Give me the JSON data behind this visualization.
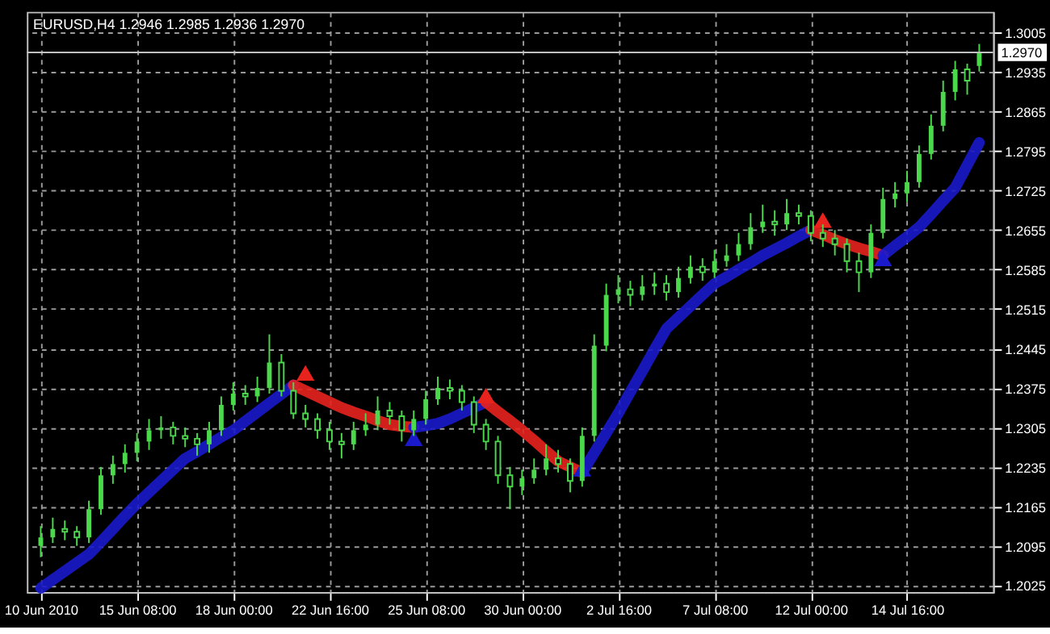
{
  "chart_data": {
    "type": "candlestick",
    "title": "EURUSD,H4  1.2946 1.2985 1.2936 1.2970",
    "color": "#4cd84c",
    "categories": [
      "10 Jun 2010",
      null,
      null,
      null,
      null,
      null,
      null,
      null,
      "15 Jun 08:00",
      null,
      null,
      null,
      null,
      null,
      null,
      null,
      "18 Jun 00:00",
      null,
      null,
      null,
      null,
      null,
      null,
      null,
      "22 Jun 16:00",
      null,
      null,
      null,
      null,
      null,
      null,
      null,
      "25 Jun 08:00",
      null,
      null,
      null,
      null,
      null,
      null,
      null,
      "30 Jun 00:00",
      null,
      null,
      null,
      null,
      null,
      null,
      null,
      "2 Jul 16:00",
      null,
      null,
      null,
      null,
      null,
      null,
      null,
      "7 Jul 08:00",
      null,
      null,
      null,
      null,
      null,
      null,
      null,
      "12 Jul 00:00",
      null,
      null,
      null,
      null,
      null,
      null,
      null,
      "14 Jul 16:00",
      null,
      null,
      null,
      null,
      null,
      null
    ],
    "ohlc": [
      [
        1.2095,
        1.213,
        1.2075,
        1.211
      ],
      [
        1.211,
        1.2145,
        1.21,
        1.2125
      ],
      [
        1.2125,
        1.214,
        1.2105,
        1.212
      ],
      [
        1.212,
        1.213,
        1.2095,
        1.211
      ],
      [
        1.211,
        1.2175,
        1.21,
        1.216
      ],
      [
        1.216,
        1.2235,
        1.215,
        1.222
      ],
      [
        1.222,
        1.2255,
        1.2205,
        1.224
      ],
      [
        1.224,
        1.2275,
        1.2225,
        1.226
      ],
      [
        1.226,
        1.2295,
        1.2245,
        1.228
      ],
      [
        1.228,
        1.232,
        1.2265,
        1.23
      ],
      [
        1.23,
        1.2325,
        1.2285,
        1.2305
      ],
      [
        1.2305,
        1.2315,
        1.2275,
        1.229
      ],
      [
        1.229,
        1.2305,
        1.227,
        1.2285
      ],
      [
        1.2285,
        1.2295,
        1.2255,
        1.2275
      ],
      [
        1.2275,
        1.2315,
        1.226,
        1.23
      ],
      [
        1.23,
        1.236,
        1.229,
        1.2345
      ],
      [
        1.2345,
        1.2385,
        1.2335,
        1.2365
      ],
      [
        1.2365,
        1.238,
        1.2345,
        1.236
      ],
      [
        1.236,
        1.2395,
        1.235,
        1.2375
      ],
      [
        1.2375,
        1.247,
        1.2365,
        1.242
      ],
      [
        1.242,
        1.2435,
        1.236,
        1.237
      ],
      [
        1.237,
        1.2385,
        1.232,
        1.233
      ],
      [
        1.233,
        1.2345,
        1.2305,
        1.232
      ],
      [
        1.232,
        1.233,
        1.2285,
        1.23
      ],
      [
        1.23,
        1.2315,
        1.2265,
        1.228
      ],
      [
        1.228,
        1.2295,
        1.225,
        1.2275
      ],
      [
        1.2275,
        1.2315,
        1.2265,
        1.23
      ],
      [
        1.23,
        1.233,
        1.229,
        1.231
      ],
      [
        1.231,
        1.236,
        1.23,
        1.2335
      ],
      [
        1.2335,
        1.235,
        1.231,
        1.2325
      ],
      [
        1.2325,
        1.2335,
        1.228,
        1.23
      ],
      [
        1.23,
        1.2335,
        1.229,
        1.232
      ],
      [
        1.232,
        1.237,
        1.231,
        1.2355
      ],
      [
        1.2355,
        1.2395,
        1.2345,
        1.2375
      ],
      [
        1.2375,
        1.239,
        1.2355,
        1.237
      ],
      [
        1.237,
        1.238,
        1.2335,
        1.235
      ],
      [
        1.235,
        1.236,
        1.2295,
        1.231
      ],
      [
        1.231,
        1.232,
        1.2265,
        1.228
      ],
      [
        1.228,
        1.229,
        1.2205,
        1.222
      ],
      [
        1.222,
        1.2235,
        1.216,
        1.22
      ],
      [
        1.22,
        1.223,
        1.2185,
        1.2215
      ],
      [
        1.2215,
        1.225,
        1.2205,
        1.223
      ],
      [
        1.223,
        1.2275,
        1.222,
        1.225
      ],
      [
        1.225,
        1.2265,
        1.2225,
        1.224
      ],
      [
        1.224,
        1.225,
        1.219,
        1.221
      ],
      [
        1.221,
        1.2305,
        1.22,
        1.229
      ],
      [
        1.229,
        1.247,
        1.228,
        1.245
      ],
      [
        1.245,
        1.256,
        1.244,
        1.254
      ],
      [
        1.254,
        1.2575,
        1.2525,
        1.255
      ],
      [
        1.255,
        1.2565,
        1.252,
        1.254
      ],
      [
        1.254,
        1.2575,
        1.253,
        1.2555
      ],
      [
        1.2555,
        1.258,
        1.254,
        1.256
      ],
      [
        1.256,
        1.2575,
        1.253,
        1.2545
      ],
      [
        1.2545,
        1.259,
        1.2535,
        1.257
      ],
      [
        1.257,
        1.261,
        1.256,
        1.259
      ],
      [
        1.259,
        1.2605,
        1.2565,
        1.258
      ],
      [
        1.258,
        1.262,
        1.257,
        1.26
      ],
      [
        1.26,
        1.263,
        1.259,
        1.261
      ],
      [
        1.261,
        1.265,
        1.26,
        1.263
      ],
      [
        1.263,
        1.2685,
        1.262,
        1.266
      ],
      [
        1.266,
        1.27,
        1.265,
        1.267
      ],
      [
        1.267,
        1.269,
        1.2645,
        1.2665
      ],
      [
        1.2665,
        1.271,
        1.2655,
        1.2685
      ],
      [
        1.2685,
        1.27,
        1.2665,
        1.268
      ],
      [
        1.268,
        1.269,
        1.2635,
        1.265
      ],
      [
        1.265,
        1.2665,
        1.2625,
        1.264
      ],
      [
        1.264,
        1.2655,
        1.261,
        1.263
      ],
      [
        1.263,
        1.264,
        1.258,
        1.26
      ],
      [
        1.26,
        1.2615,
        1.2545,
        1.258
      ],
      [
        1.258,
        1.2665,
        1.257,
        1.265
      ],
      [
        1.265,
        1.273,
        1.264,
        1.271
      ],
      [
        1.271,
        1.274,
        1.2695,
        1.272
      ],
      [
        1.272,
        1.276,
        1.2705,
        1.274
      ],
      [
        1.274,
        1.2805,
        1.273,
        1.279
      ],
      [
        1.279,
        1.286,
        1.278,
        1.284
      ],
      [
        1.284,
        1.292,
        1.283,
        1.29
      ],
      [
        1.29,
        1.2955,
        1.2885,
        1.294
      ],
      [
        1.294,
        1.295,
        1.2895,
        1.292
      ],
      [
        1.2946,
        1.2985,
        1.2936,
        1.297
      ]
    ],
    "series": [
      {
        "type": "line",
        "color": "#1a1acc",
        "values": [
          1.202,
          1.2035,
          1.205,
          1.2065,
          1.208,
          1.2102,
          1.2125,
          1.2148,
          1.217,
          1.219,
          1.221,
          1.223,
          1.225,
          1.2262,
          1.2275,
          1.2288,
          1.23,
          1.2316,
          1.2332,
          1.2348,
          1.2364,
          1.238,
          null,
          null,
          null,
          null,
          null,
          null,
          null,
          null,
          null,
          null,
          null,
          null,
          null,
          null,
          null,
          null,
          null,
          null,
          null,
          null,
          null,
          null,
          null,
          null,
          null,
          null,
          null,
          null,
          null,
          null,
          null,
          null,
          null,
          null,
          null,
          null,
          null,
          null,
          null,
          null,
          null,
          null,
          null,
          null,
          null,
          null,
          null,
          null,
          null,
          null,
          null,
          null,
          null,
          null,
          null,
          null,
          null
        ]
      },
      {
        "type": "line",
        "color": "#e8231e",
        "values": [
          null,
          null,
          null,
          null,
          null,
          null,
          null,
          null,
          null,
          null,
          null,
          null,
          null,
          null,
          null,
          null,
          null,
          null,
          null,
          null,
          null,
          1.238,
          1.237,
          1.236,
          1.235,
          1.234,
          1.2332,
          1.2325,
          1.2317,
          1.231,
          1.2307,
          1.2305,
          null,
          null,
          null,
          null,
          null,
          null,
          null,
          null,
          null,
          null,
          null,
          null,
          null,
          null,
          null,
          null,
          null,
          null,
          null,
          null,
          null,
          null,
          null,
          null,
          null,
          null,
          null,
          null,
          null,
          null,
          null,
          null,
          null,
          null,
          null,
          null,
          null,
          null,
          null,
          null,
          null,
          null,
          null,
          null,
          null,
          null,
          null
        ]
      },
      {
        "type": "line",
        "color": "#1a1acc",
        "values": [
          null,
          null,
          null,
          null,
          null,
          null,
          null,
          null,
          null,
          null,
          null,
          null,
          null,
          null,
          null,
          null,
          null,
          null,
          null,
          null,
          null,
          null,
          null,
          null,
          null,
          null,
          null,
          null,
          null,
          null,
          null,
          1.2305,
          1.2308,
          1.2312,
          1.232,
          1.233,
          1.234,
          1.235,
          null,
          null,
          null,
          null,
          null,
          null,
          null,
          null,
          null,
          null,
          null,
          null,
          null,
          null,
          null,
          null,
          null,
          null,
          null,
          null,
          null,
          null,
          null,
          null,
          null,
          null,
          null,
          null,
          null,
          null,
          null,
          null,
          null,
          null,
          null,
          null,
          null,
          null,
          null,
          null,
          null
        ]
      },
      {
        "type": "line",
        "color": "#e8231e",
        "values": [
          null,
          null,
          null,
          null,
          null,
          null,
          null,
          null,
          null,
          null,
          null,
          null,
          null,
          null,
          null,
          null,
          null,
          null,
          null,
          null,
          null,
          null,
          null,
          null,
          null,
          null,
          null,
          null,
          null,
          null,
          null,
          null,
          null,
          null,
          null,
          null,
          null,
          1.235,
          1.2333,
          1.2317,
          1.23,
          1.2282,
          1.2263,
          1.2245,
          1.2235,
          1.2225,
          null,
          null,
          null,
          null,
          null,
          null,
          null,
          null,
          null,
          null,
          null,
          null,
          null,
          null,
          null,
          null,
          null,
          null,
          null,
          null,
          null,
          null,
          null,
          null,
          null,
          null,
          null,
          null,
          null,
          null,
          null,
          null,
          null
        ]
      },
      {
        "type": "line",
        "color": "#1a1acc",
        "values": [
          null,
          null,
          null,
          null,
          null,
          null,
          null,
          null,
          null,
          null,
          null,
          null,
          null,
          null,
          null,
          null,
          null,
          null,
          null,
          null,
          null,
          null,
          null,
          null,
          null,
          null,
          null,
          null,
          null,
          null,
          null,
          null,
          null,
          null,
          null,
          null,
          null,
          null,
          null,
          null,
          null,
          null,
          null,
          null,
          null,
          1.2225,
          1.226,
          1.2295,
          1.233,
          1.2368,
          1.2405,
          1.2443,
          1.248,
          1.25,
          1.252,
          1.254,
          1.256,
          1.2572,
          1.2585,
          1.2597,
          1.261,
          1.2621,
          1.2632,
          1.2644,
          1.2655,
          null,
          null,
          null,
          null,
          null,
          null,
          null,
          null,
          null,
          null,
          null,
          null,
          null,
          null
        ]
      },
      {
        "type": "line",
        "color": "#e8231e",
        "values": [
          null,
          null,
          null,
          null,
          null,
          null,
          null,
          null,
          null,
          null,
          null,
          null,
          null,
          null,
          null,
          null,
          null,
          null,
          null,
          null,
          null,
          null,
          null,
          null,
          null,
          null,
          null,
          null,
          null,
          null,
          null,
          null,
          null,
          null,
          null,
          null,
          null,
          null,
          null,
          null,
          null,
          null,
          null,
          null,
          null,
          null,
          null,
          null,
          null,
          null,
          null,
          null,
          null,
          null,
          null,
          null,
          null,
          null,
          null,
          null,
          null,
          null,
          null,
          null,
          1.2655,
          1.2647,
          1.2638,
          1.263,
          1.2623,
          1.2617,
          1.261,
          null,
          null,
          null,
          null,
          null,
          null,
          null,
          null
        ]
      },
      {
        "type": "line",
        "color": "#1a1acc",
        "values": [
          null,
          null,
          null,
          null,
          null,
          null,
          null,
          null,
          null,
          null,
          null,
          null,
          null,
          null,
          null,
          null,
          null,
          null,
          null,
          null,
          null,
          null,
          null,
          null,
          null,
          null,
          null,
          null,
          null,
          null,
          null,
          null,
          null,
          null,
          null,
          null,
          null,
          null,
          null,
          null,
          null,
          null,
          null,
          null,
          null,
          null,
          null,
          null,
          null,
          null,
          null,
          null,
          null,
          null,
          null,
          null,
          null,
          null,
          null,
          null,
          null,
          null,
          null,
          null,
          null,
          null,
          null,
          null,
          null,
          null,
          1.261,
          1.2627,
          1.2643,
          1.266,
          1.2683,
          1.2707,
          1.273,
          1.277,
          1.281
        ]
      },
      {
        "type": "scatter",
        "color": "#e8231e",
        "marker": "triangle",
        "values": [
          null,
          null,
          null,
          null,
          null,
          null,
          null,
          null,
          null,
          null,
          null,
          null,
          null,
          null,
          null,
          null,
          null,
          null,
          null,
          null,
          null,
          null,
          1.2397,
          null,
          null,
          null,
          null,
          null,
          null,
          null,
          null,
          null,
          null,
          null,
          null,
          null,
          null,
          1.2357,
          null,
          null,
          null,
          null,
          null,
          null,
          null,
          null,
          null,
          null,
          null,
          null,
          null,
          null,
          null,
          null,
          null,
          null,
          null,
          null,
          null,
          null,
          null,
          null,
          null,
          null,
          null,
          1.2668,
          null,
          null,
          null,
          null,
          null,
          null,
          null,
          null,
          null,
          null,
          null,
          null,
          null
        ]
      },
      {
        "type": "scatter",
        "color": "#1a1acc",
        "marker": "triangle",
        "values": [
          null,
          null,
          null,
          null,
          null,
          null,
          null,
          null,
          null,
          null,
          null,
          null,
          null,
          null,
          null,
          null,
          null,
          null,
          null,
          null,
          null,
          null,
          null,
          null,
          null,
          null,
          null,
          null,
          null,
          null,
          null,
          1.2281,
          null,
          null,
          null,
          null,
          null,
          null,
          null,
          null,
          null,
          null,
          null,
          null,
          null,
          1.2227,
          null,
          null,
          null,
          null,
          null,
          null,
          null,
          null,
          null,
          null,
          null,
          null,
          null,
          null,
          null,
          null,
          null,
          null,
          null,
          null,
          null,
          null,
          null,
          null,
          1.26,
          null,
          null,
          null,
          null,
          null,
          null,
          null,
          null
        ]
      }
    ],
    "ref_lines": [
      {
        "axis": "y",
        "value": 1.297,
        "label": "1.2970",
        "color": "#c0c0c0"
      }
    ],
    "ylim": [
      1.2013,
      1.3042
    ],
    "yticks": [
      1.2025,
      1.2095,
      1.2165,
      1.2235,
      1.2305,
      1.2375,
      1.2445,
      1.2515,
      1.2585,
      1.2655,
      1.2725,
      1.2795,
      1.2865,
      1.2935,
      1.3005
    ],
    "grid": true
  }
}
